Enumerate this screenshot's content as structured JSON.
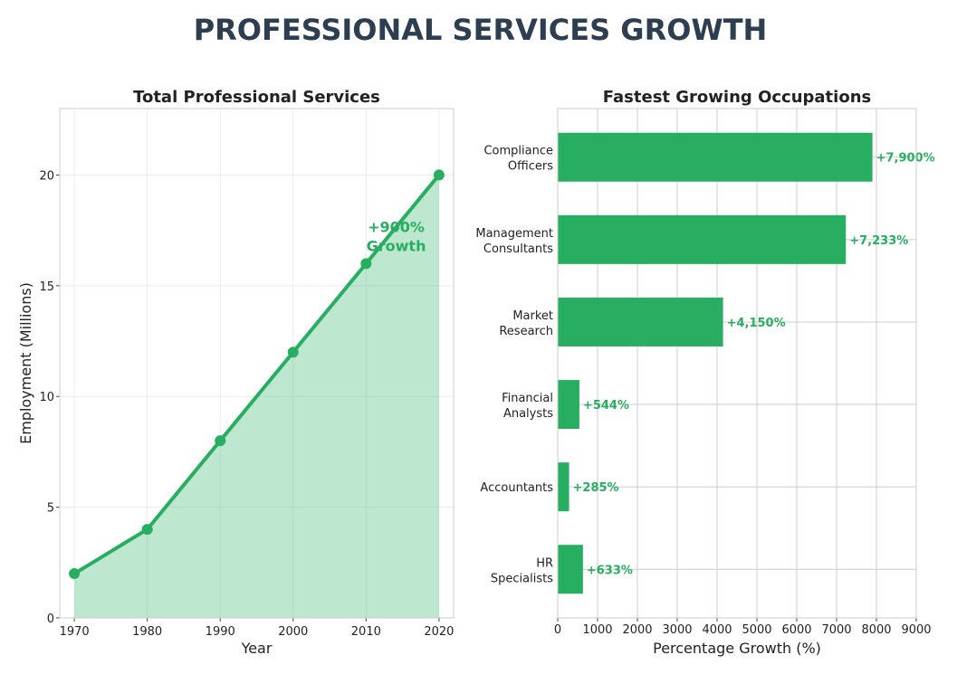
{
  "title": "PROFESSIONAL SERVICES GROWTH",
  "colors": {
    "accent": "#27ae60",
    "title": "#2c3e50",
    "fill": "#bee6cf",
    "text": "#222222"
  },
  "chart_data": [
    {
      "type": "area",
      "title": "Total Professional Services",
      "xlabel": "Year",
      "ylabel": "Employment (Millions)",
      "x": [
        1970,
        1980,
        1990,
        2000,
        2010,
        2020
      ],
      "values": [
        2,
        4,
        8,
        12,
        16,
        20
      ],
      "xlim": [
        1968,
        2022
      ],
      "ylim": [
        0,
        23
      ],
      "xticks": [
        "1970",
        "1980",
        "1990",
        "2000",
        "2010",
        "2020"
      ],
      "yticks": [
        "0",
        "5",
        "10",
        "15",
        "20"
      ],
      "grid": true,
      "annotation": {
        "lines": [
          "+900%",
          "Growth"
        ],
        "x": 2014,
        "y": 17.5
      }
    },
    {
      "type": "bar",
      "orientation": "horizontal",
      "title": "Fastest Growing Occupations",
      "xlabel": "Percentage Growth (%)",
      "ylabel": "",
      "categories": [
        [
          "HR",
          "Specialists"
        ],
        [
          "Accountants"
        ],
        [
          "Financial",
          "Analysts"
        ],
        [
          "Market",
          "Research"
        ],
        [
          "Management",
          "Consultants"
        ],
        [
          "Compliance",
          "Officers"
        ]
      ],
      "values": [
        633,
        285,
        544,
        4150,
        7233,
        7900
      ],
      "data_labels": [
        "+633%",
        "+285%",
        "+544%",
        "+4,150%",
        "+7,233%",
        "+7,900%"
      ],
      "xlim": [
        0,
        9000
      ],
      "xticks": [
        "0",
        "1000",
        "2000",
        "3000",
        "4000",
        "5000",
        "6000",
        "7000",
        "8000",
        "9000"
      ],
      "grid": true
    }
  ]
}
